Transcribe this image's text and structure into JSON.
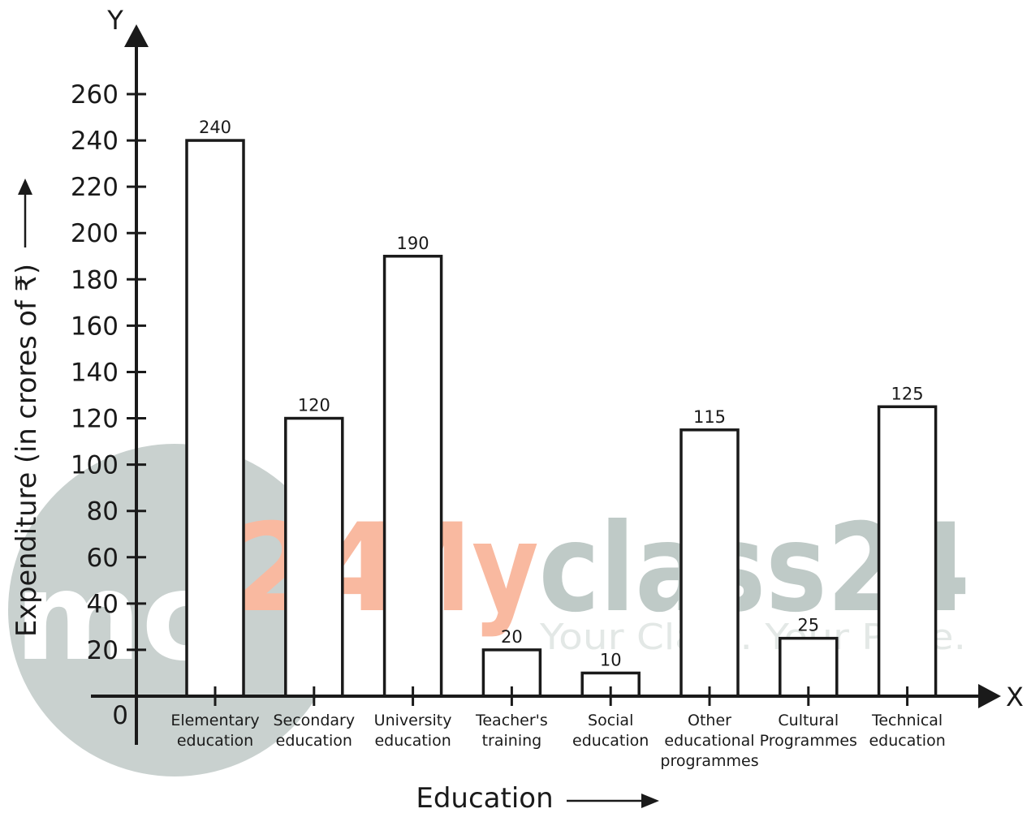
{
  "chart_data": {
    "type": "bar",
    "categories": [
      [
        "Elementary",
        "education"
      ],
      [
        "Secondary",
        "education"
      ],
      [
        "University",
        "education"
      ],
      [
        "Teacher's",
        "training"
      ],
      [
        "Social",
        "education"
      ],
      [
        "Other",
        "educational",
        "programmes"
      ],
      [
        "Cultural",
        "Programmes"
      ],
      [
        "Technical",
        "education"
      ]
    ],
    "values": [
      240,
      120,
      190,
      20,
      10,
      115,
      25,
      125
    ],
    "data_labels": [
      "240",
      "120",
      "190",
      "20",
      "10",
      "115",
      "25",
      "125"
    ],
    "xlabel": "Education",
    "ylabel": "Expenditure (in crores of ₹)",
    "x_axis_letter": "X",
    "y_axis_letter": "Y",
    "ylim": [
      0,
      260
    ],
    "yticks": [
      0,
      20,
      40,
      60,
      80,
      100,
      120,
      140,
      160,
      180,
      200,
      220,
      240,
      260
    ],
    "ytick_labels": [
      "0",
      "20",
      "40",
      "60",
      "80",
      "100",
      "120",
      "140",
      "160",
      "180",
      "200",
      "220",
      "240",
      "260"
    ],
    "grid": false,
    "bar_fill": "#ffffff",
    "bar_stroke": "#1a1a1a"
  },
  "watermark": {
    "logo_text": "mc",
    "logo_number": "24",
    "brand_my": "My",
    "brand_rest": "class24",
    "tagline": "Your Class. Your Pace.",
    "colors": {
      "circle": "#c9d1cf",
      "orange": "#f9b9a0",
      "grey": "#bfcac7",
      "tagline": "#e3e8e6"
    }
  }
}
